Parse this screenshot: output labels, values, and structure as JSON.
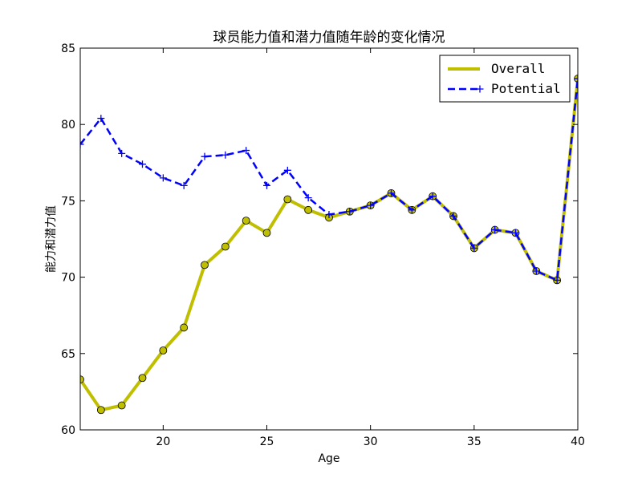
{
  "chart_data": {
    "type": "line",
    "title": "球员能力值和潜力值随年龄的变化情况",
    "xlabel": "Age",
    "ylabel": "能力和潜力值",
    "xlim": [
      16,
      40
    ],
    "ylim": [
      60,
      85
    ],
    "xticks": [
      20,
      25,
      30,
      35,
      40
    ],
    "yticks": [
      60,
      65,
      70,
      75,
      80,
      85
    ],
    "legend_position": "top-right",
    "grid": false,
    "x": [
      16,
      17,
      18,
      19,
      20,
      21,
      22,
      23,
      24,
      25,
      26,
      27,
      28,
      29,
      30,
      31,
      32,
      33,
      34,
      35,
      36,
      37,
      38,
      39,
      40
    ],
    "series": [
      {
        "name": "Overall",
        "color": "#bfbf00",
        "style": "solid",
        "marker": "circle",
        "values": [
          63.3,
          61.3,
          61.6,
          63.4,
          65.2,
          66.7,
          70.8,
          72.0,
          73.7,
          72.9,
          75.1,
          74.4,
          73.9,
          74.3,
          74.7,
          75.5,
          74.4,
          75.3,
          74.0,
          71.9,
          73.1,
          72.9,
          70.4,
          69.8,
          83.0
        ]
      },
      {
        "name": "Potential",
        "color": "#0000ff",
        "style": "dashed",
        "marker": "plus",
        "values": [
          78.7,
          80.4,
          78.1,
          77.4,
          76.5,
          76.0,
          77.9,
          78.0,
          78.3,
          76.0,
          77.0,
          75.2,
          74.1,
          74.3,
          74.7,
          75.5,
          74.4,
          75.3,
          74.0,
          71.9,
          73.1,
          72.9,
          70.4,
          69.8,
          83.0
        ]
      }
    ]
  }
}
